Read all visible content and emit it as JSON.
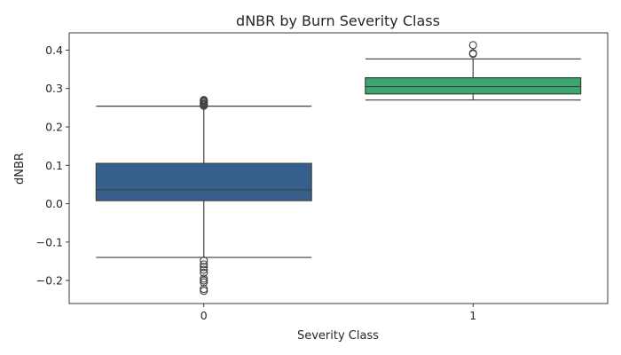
{
  "chart_data": {
    "type": "box",
    "title": "dNBR by Burn Severity Class",
    "xlabel": "Severity Class",
    "ylabel": "dNBR",
    "ylim": [
      -0.26,
      0.445
    ],
    "yticks": [
      -0.2,
      -0.1,
      0.0,
      0.1,
      0.2,
      0.3,
      0.4
    ],
    "ytick_labels": [
      "−0.2",
      "−0.1",
      "0.0",
      "0.1",
      "0.2",
      "0.3",
      "0.4"
    ],
    "categories": [
      "0",
      "1"
    ],
    "boxes": [
      {
        "category": "0",
        "color": "#35608d",
        "whisker_low": -0.14,
        "q1": 0.008,
        "median": 0.036,
        "q3": 0.105,
        "whisker_high": 0.254,
        "outliers": [
          0.255,
          0.258,
          0.26,
          0.263,
          0.266,
          0.268,
          0.27,
          -0.148,
          -0.158,
          -0.165,
          -0.172,
          -0.18,
          -0.195,
          -0.2,
          -0.205,
          -0.222,
          -0.227
        ]
      },
      {
        "category": "1",
        "color": "#3aa76e",
        "whisker_low": 0.27,
        "q1": 0.286,
        "median": 0.305,
        "q3": 0.328,
        "whisker_high": 0.377,
        "outliers": [
          0.39,
          0.392,
          0.413
        ]
      }
    ]
  }
}
